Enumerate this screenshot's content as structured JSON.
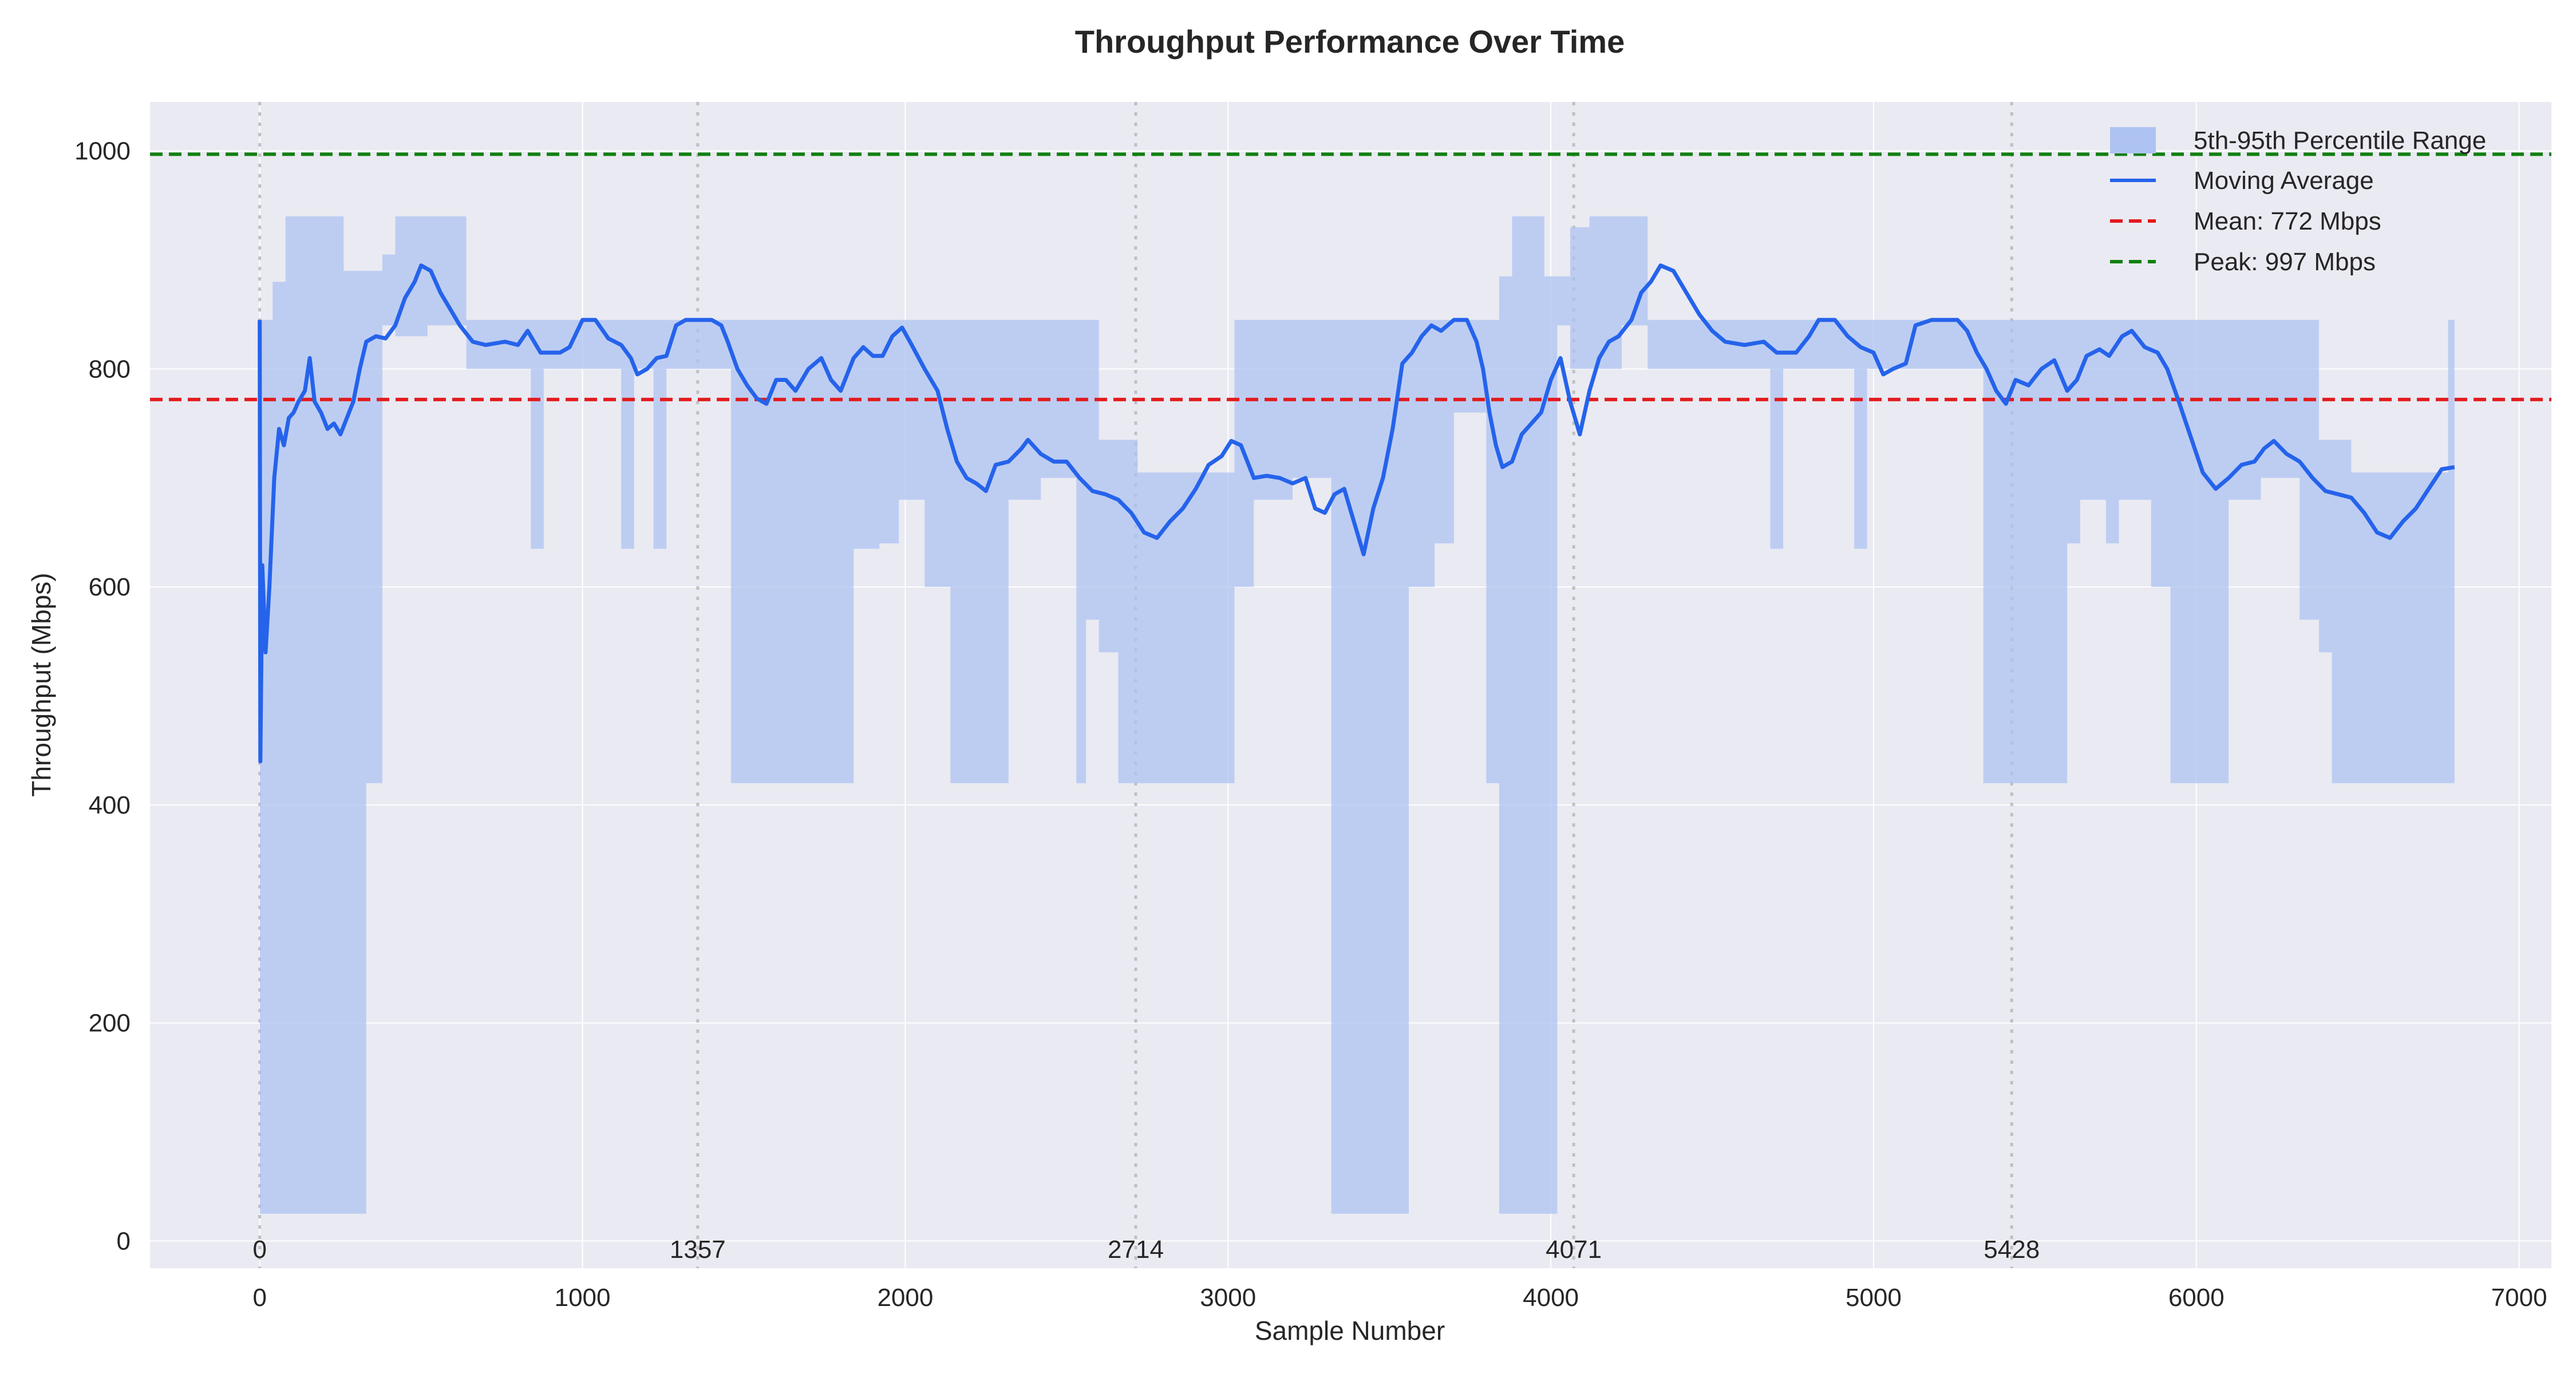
{
  "chart_data": {
    "type": "line",
    "title": "Throughput Performance Over Time",
    "xlabel": "Sample Number",
    "ylabel": "Throughput (Mbps)",
    "xlim": [
      -340,
      7100
    ],
    "ylim": [
      -25,
      1045
    ],
    "x_ticks": [
      0,
      1000,
      2000,
      3000,
      4000,
      5000,
      6000,
      7000
    ],
    "y_ticks": [
      0,
      200,
      400,
      600,
      800,
      1000
    ],
    "grid": true,
    "legend_position": "top-right",
    "colors": {
      "moving_average": "#2563eb",
      "percentile_band": "#aec3f1",
      "mean": "#e31a1c",
      "peak": "#108010",
      "marker_lines": "#c0c0c0",
      "plot_background": "#eaeaf2"
    },
    "sample_markers": [
      0,
      1357,
      2714,
      4071,
      5428
    ],
    "reference_lines": [
      {
        "name": "Mean: 772 Mbps",
        "value": 772,
        "style": "dashed",
        "color": "#e31a1c"
      },
      {
        "name": "Peak: 997 Mbps",
        "value": 997,
        "style": "dashed",
        "color": "#108010"
      }
    ],
    "series": [
      {
        "name": "Moving Average",
        "kind": "line",
        "points": [
          [
            0,
            845
          ],
          [
            2,
            440
          ],
          [
            8,
            620
          ],
          [
            18,
            540
          ],
          [
            30,
            600
          ],
          [
            45,
            700
          ],
          [
            60,
            745
          ],
          [
            75,
            730
          ],
          [
            90,
            755
          ],
          [
            105,
            760
          ],
          [
            120,
            770
          ],
          [
            140,
            780
          ],
          [
            155,
            810
          ],
          [
            170,
            770
          ],
          [
            190,
            760
          ],
          [
            210,
            745
          ],
          [
            230,
            750
          ],
          [
            250,
            740
          ],
          [
            270,
            755
          ],
          [
            290,
            770
          ],
          [
            310,
            800
          ],
          [
            330,
            825
          ],
          [
            360,
            830
          ],
          [
            390,
            828
          ],
          [
            420,
            840
          ],
          [
            450,
            865
          ],
          [
            480,
            880
          ],
          [
            500,
            895
          ],
          [
            530,
            890
          ],
          [
            560,
            870
          ],
          [
            590,
            855
          ],
          [
            620,
            840
          ],
          [
            660,
            825
          ],
          [
            700,
            822
          ],
          [
            760,
            825
          ],
          [
            800,
            822
          ],
          [
            830,
            835
          ],
          [
            870,
            815
          ],
          [
            930,
            815
          ],
          [
            960,
            820
          ],
          [
            1000,
            845
          ],
          [
            1040,
            845
          ],
          [
            1080,
            828
          ],
          [
            1120,
            822
          ],
          [
            1150,
            810
          ],
          [
            1170,
            795
          ],
          [
            1200,
            800
          ],
          [
            1230,
            810
          ],
          [
            1260,
            812
          ],
          [
            1290,
            840
          ],
          [
            1320,
            845
          ],
          [
            1400,
            845
          ],
          [
            1430,
            840
          ],
          [
            1450,
            825
          ],
          [
            1480,
            800
          ],
          [
            1510,
            785
          ],
          [
            1540,
            773
          ],
          [
            1570,
            768
          ],
          [
            1600,
            790
          ],
          [
            1630,
            790
          ],
          [
            1660,
            780
          ],
          [
            1700,
            800
          ],
          [
            1740,
            810
          ],
          [
            1770,
            790
          ],
          [
            1800,
            780
          ],
          [
            1840,
            810
          ],
          [
            1870,
            820
          ],
          [
            1900,
            812
          ],
          [
            1930,
            812
          ],
          [
            1960,
            830
          ],
          [
            1990,
            838
          ],
          [
            2020,
            822
          ],
          [
            2060,
            800
          ],
          [
            2100,
            780
          ],
          [
            2130,
            745
          ],
          [
            2160,
            715
          ],
          [
            2190,
            700
          ],
          [
            2220,
            695
          ],
          [
            2250,
            688
          ],
          [
            2280,
            712
          ],
          [
            2320,
            715
          ],
          [
            2360,
            727
          ],
          [
            2380,
            735
          ],
          [
            2420,
            722
          ],
          [
            2460,
            715
          ],
          [
            2500,
            715
          ],
          [
            2540,
            700
          ],
          [
            2580,
            688
          ],
          [
            2620,
            685
          ],
          [
            2660,
            680
          ],
          [
            2700,
            668
          ],
          [
            2740,
            650
          ],
          [
            2780,
            645
          ],
          [
            2820,
            660
          ],
          [
            2860,
            672
          ],
          [
            2900,
            690
          ],
          [
            2940,
            712
          ],
          [
            2980,
            720
          ],
          [
            3010,
            734
          ],
          [
            3040,
            730
          ],
          [
            3080,
            700
          ],
          [
            3120,
            702
          ],
          [
            3160,
            700
          ],
          [
            3200,
            695
          ],
          [
            3240,
            700
          ],
          [
            3270,
            672
          ],
          [
            3300,
            668
          ],
          [
            3330,
            685
          ],
          [
            3360,
            690
          ],
          [
            3390,
            660
          ],
          [
            3420,
            630
          ],
          [
            3450,
            672
          ],
          [
            3480,
            700
          ],
          [
            3510,
            745
          ],
          [
            3540,
            805
          ],
          [
            3570,
            815
          ],
          [
            3600,
            830
          ],
          [
            3630,
            840
          ],
          [
            3660,
            835
          ],
          [
            3700,
            845
          ],
          [
            3740,
            845
          ],
          [
            3770,
            825
          ],
          [
            3790,
            800
          ],
          [
            3810,
            760
          ],
          [
            3830,
            730
          ],
          [
            3850,
            710
          ],
          [
            3880,
            715
          ],
          [
            3910,
            740
          ],
          [
            3940,
            750
          ],
          [
            3970,
            760
          ],
          [
            4000,
            790
          ],
          [
            4030,
            810
          ],
          [
            4060,
            770
          ],
          [
            4090,
            740
          ],
          [
            4120,
            780
          ],
          [
            4150,
            810
          ],
          [
            4180,
            825
          ],
          [
            4210,
            830
          ],
          [
            4250,
            845
          ],
          [
            4280,
            870
          ],
          [
            4310,
            880
          ],
          [
            4340,
            895
          ],
          [
            4380,
            890
          ],
          [
            4420,
            870
          ],
          [
            4460,
            850
          ],
          [
            4500,
            835
          ],
          [
            4540,
            825
          ],
          [
            4600,
            822
          ],
          [
            4660,
            825
          ],
          [
            4700,
            815
          ],
          [
            4760,
            815
          ],
          [
            4800,
            830
          ],
          [
            4830,
            845
          ],
          [
            4880,
            845
          ],
          [
            4920,
            830
          ],
          [
            4960,
            820
          ],
          [
            5000,
            815
          ],
          [
            5030,
            795
          ],
          [
            5060,
            800
          ],
          [
            5100,
            805
          ],
          [
            5130,
            840
          ],
          [
            5180,
            845
          ],
          [
            5260,
            845
          ],
          [
            5290,
            835
          ],
          [
            5320,
            815
          ],
          [
            5350,
            800
          ],
          [
            5380,
            780
          ],
          [
            5410,
            768
          ],
          [
            5440,
            790
          ],
          [
            5480,
            785
          ],
          [
            5520,
            800
          ],
          [
            5560,
            808
          ],
          [
            5600,
            780
          ],
          [
            5630,
            790
          ],
          [
            5660,
            812
          ],
          [
            5700,
            818
          ],
          [
            5730,
            812
          ],
          [
            5770,
            830
          ],
          [
            5800,
            835
          ],
          [
            5840,
            820
          ],
          [
            5880,
            815
          ],
          [
            5910,
            800
          ],
          [
            5940,
            775
          ],
          [
            5980,
            740
          ],
          [
            6020,
            705
          ],
          [
            6060,
            690
          ],
          [
            6100,
            700
          ],
          [
            6140,
            712
          ],
          [
            6180,
            715
          ],
          [
            6210,
            727
          ],
          [
            6240,
            734
          ],
          [
            6280,
            722
          ],
          [
            6320,
            715
          ],
          [
            6360,
            700
          ],
          [
            6400,
            688
          ],
          [
            6440,
            685
          ],
          [
            6480,
            682
          ],
          [
            6520,
            668
          ],
          [
            6560,
            650
          ],
          [
            6600,
            645
          ],
          [
            6640,
            660
          ],
          [
            6680,
            672
          ],
          [
            6720,
            690
          ],
          [
            6760,
            708
          ],
          [
            6800,
            710
          ]
        ]
      },
      {
        "name": "5th-95th Percentile Range",
        "kind": "band",
        "x": [
          0,
          40,
          80,
          140,
          200,
          260,
          330,
          380,
          420,
          470,
          520,
          570,
          640,
          840,
          880,
          960,
          1000,
          1080,
          1120,
          1160,
          1220,
          1260,
          1330,
          1420,
          1460,
          1500,
          1560,
          1620,
          1660,
          1700,
          1760,
          1840,
          1920,
          1980,
          2060,
          2140,
          2220,
          2320,
          2420,
          2530,
          2560,
          2600,
          2660,
          2720,
          2760,
          2820,
          2880,
          2940,
          3020,
          3080,
          3200,
          3280,
          3320,
          3360,
          3420,
          3490,
          3560,
          3640,
          3700,
          3760,
          3800,
          3840,
          3880,
          3940,
          3980,
          4020,
          4060,
          4120,
          4180,
          4220,
          4300,
          4360,
          4420,
          4480,
          4520,
          4600,
          4680,
          4720,
          4760,
          4840,
          4940,
          4980,
          5040,
          5100,
          5180,
          5260,
          5340,
          5420,
          5540,
          5600,
          5640,
          5720,
          5760,
          5860,
          5920,
          5980,
          6100,
          6200,
          6320,
          6380,
          6420,
          6480,
          6560,
          6680,
          6780
        ],
        "low": [
          25,
          25,
          25,
          25,
          25,
          25,
          420,
          840,
          830,
          830,
          840,
          840,
          800,
          635,
          800,
          800,
          800,
          800,
          635,
          800,
          635,
          800,
          800,
          800,
          420,
          420,
          420,
          420,
          420,
          420,
          420,
          635,
          640,
          680,
          600,
          420,
          420,
          680,
          700,
          420,
          570,
          540,
          420,
          420,
          420,
          420,
          420,
          420,
          600,
          680,
          700,
          700,
          25,
          25,
          25,
          25,
          600,
          640,
          760,
          760,
          420,
          25,
          25,
          25,
          25,
          840,
          800,
          800,
          800,
          840,
          800,
          800,
          800,
          800,
          800,
          800,
          635,
          800,
          800,
          800,
          635,
          800,
          800,
          800,
          800,
          800,
          420,
          420,
          420,
          640,
          680,
          640,
          680,
          600,
          420,
          420,
          680,
          700,
          570,
          540,
          420,
          420,
          420,
          420,
          420
        ],
        "high": [
          845,
          880,
          940,
          940,
          940,
          890,
          890,
          905,
          940,
          940,
          940,
          940,
          845,
          845,
          845,
          845,
          845,
          845,
          845,
          845,
          845,
          845,
          845,
          845,
          845,
          845,
          845,
          845,
          845,
          845,
          845,
          845,
          845,
          845,
          845,
          845,
          845,
          845,
          845,
          845,
          845,
          735,
          735,
          705,
          705,
          705,
          705,
          705,
          845,
          845,
          845,
          845,
          845,
          845,
          845,
          845,
          845,
          845,
          845,
          845,
          845,
          885,
          940,
          940,
          885,
          885,
          930,
          940,
          940,
          940,
          845,
          845,
          845,
          845,
          845,
          845,
          845,
          845,
          845,
          845,
          845,
          845,
          845,
          845,
          845,
          845,
          845,
          845,
          845,
          845,
          845,
          845,
          845,
          845,
          845,
          845,
          845,
          845,
          845,
          735,
          735,
          705,
          705,
          705,
          845
        ]
      }
    ]
  }
}
